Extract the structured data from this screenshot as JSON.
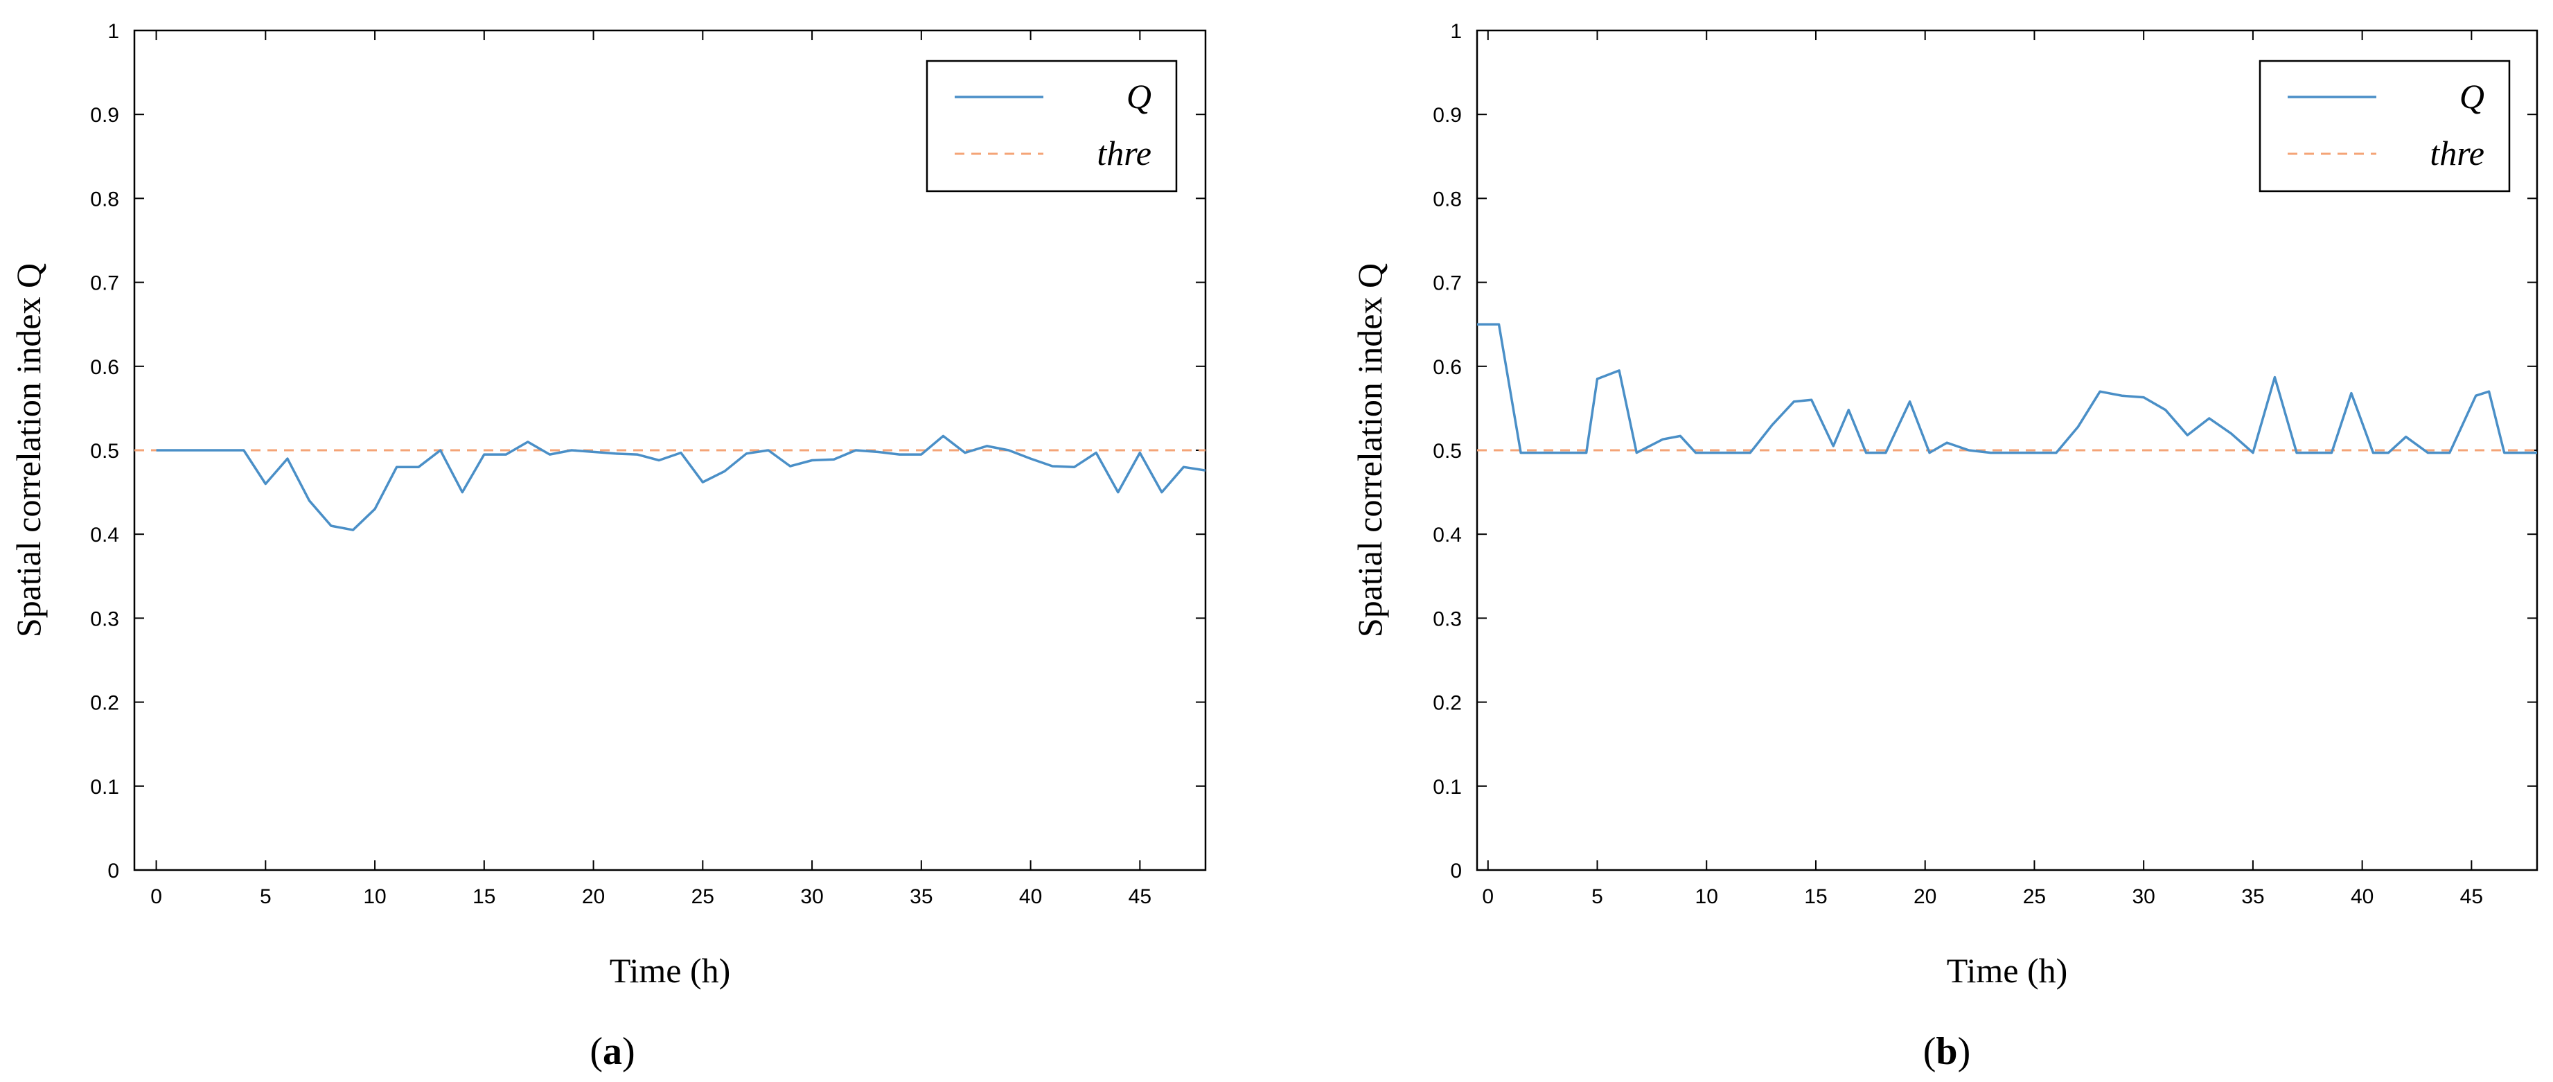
{
  "chart_data": [
    {
      "type": "line",
      "panel_label": "(a)",
      "panel_letter": "a",
      "xlabel": "Time (h)",
      "ylabel": "Spatial correlation index Q",
      "xlim": [
        -1,
        48
      ],
      "ylim": [
        0,
        1
      ],
      "xticks": [
        0,
        5,
        10,
        15,
        20,
        25,
        30,
        35,
        40,
        45
      ],
      "yticks": [
        0,
        0.1,
        0.2,
        0.3,
        0.4,
        0.5,
        0.6,
        0.7,
        0.8,
        0.9,
        1
      ],
      "ytick_labels": [
        "0",
        "0.1",
        "0.2",
        "0.3",
        "0.4",
        "0.5",
        "0.6",
        "0.7",
        "0.8",
        "0.9",
        "1"
      ],
      "grid": false,
      "legend_position": "top-right",
      "series": [
        {
          "name": "Q",
          "style": "solid",
          "color": "#4a8fc7",
          "x": [
            0,
            1,
            2,
            3,
            4,
            5,
            6,
            7,
            8,
            9,
            10,
            11,
            12,
            13,
            14,
            15,
            16,
            17,
            18,
            19,
            20,
            21,
            22,
            23,
            24,
            25,
            26,
            27,
            28,
            29,
            30,
            31,
            32,
            33,
            34,
            35,
            36,
            37,
            38,
            39,
            40,
            41,
            42,
            43,
            44,
            45,
            46,
            47,
            48
          ],
          "y": [
            0.5,
            0.5,
            0.5,
            0.5,
            0.5,
            0.46,
            0.49,
            0.44,
            0.41,
            0.405,
            0.43,
            0.48,
            0.48,
            0.5,
            0.45,
            0.495,
            0.495,
            0.51,
            0.495,
            0.5,
            0.498,
            0.496,
            0.495,
            0.488,
            0.497,
            0.462,
            0.475,
            0.496,
            0.5,
            0.481,
            0.488,
            0.489,
            0.5,
            0.498,
            0.495,
            0.495,
            0.517,
            0.497,
            0.505,
            0.5,
            0.49,
            0.481,
            0.48,
            0.497,
            0.45,
            0.497,
            0.45,
            0.48,
            0.476
          ]
        },
        {
          "name": "thre",
          "style": "dashed",
          "color": "#f4a477",
          "x": [
            -1,
            48
          ],
          "y": [
            0.5,
            0.5
          ]
        }
      ]
    },
    {
      "type": "line",
      "panel_label": "(b)",
      "panel_letter": "b",
      "xlabel": "Time (h)",
      "ylabel": "Spatial correlation index Q",
      "xlim": [
        -0.5,
        48
      ],
      "ylim": [
        0,
        1
      ],
      "xticks": [
        0,
        5,
        10,
        15,
        20,
        25,
        30,
        35,
        40,
        45
      ],
      "yticks": [
        0,
        0.1,
        0.2,
        0.3,
        0.4,
        0.5,
        0.6,
        0.7,
        0.8,
        0.9,
        1
      ],
      "ytick_labels": [
        "0",
        "0.1",
        "0.2",
        "0.3",
        "0.4",
        "0.5",
        "0.6",
        "0.7",
        "0.8",
        "0.9",
        "1"
      ],
      "grid": false,
      "legend_position": "top-right",
      "series": [
        {
          "name": "Q",
          "style": "solid",
          "color": "#4a8fc7",
          "x": [
            -0.5,
            0.5,
            1.5,
            2.5,
            3.5,
            4.5,
            5,
            6,
            6.8,
            8,
            8.8,
            9.5,
            10.5,
            11.5,
            12,
            13,
            14,
            14.8,
            15.8,
            16.5,
            17.3,
            18.2,
            19.3,
            20.2,
            21,
            22,
            23,
            24,
            25,
            26,
            27,
            28,
            29,
            30,
            31,
            32,
            33,
            34,
            35,
            36,
            37,
            37.8,
            38.6,
            39.5,
            40.5,
            41.2,
            42,
            43,
            44,
            45.2,
            45.8,
            46.5,
            47.2,
            48
          ],
          "y": [
            0.65,
            0.65,
            0.497,
            0.497,
            0.497,
            0.497,
            0.585,
            0.595,
            0.497,
            0.513,
            0.517,
            0.497,
            0.497,
            0.497,
            0.497,
            0.53,
            0.558,
            0.56,
            0.505,
            0.548,
            0.497,
            0.497,
            0.558,
            0.497,
            0.509,
            0.5,
            0.497,
            0.497,
            0.497,
            0.497,
            0.528,
            0.57,
            0.565,
            0.563,
            0.548,
            0.518,
            0.538,
            0.52,
            0.497,
            0.587,
            0.497,
            0.497,
            0.497,
            0.568,
            0.497,
            0.497,
            0.516,
            0.497,
            0.497,
            0.565,
            0.57,
            0.497,
            0.497,
            0.497
          ]
        },
        {
          "name": "thre",
          "style": "dashed",
          "color": "#f4a477",
          "x": [
            -0.5,
            48
          ],
          "y": [
            0.5,
            0.5
          ]
        }
      ]
    }
  ]
}
